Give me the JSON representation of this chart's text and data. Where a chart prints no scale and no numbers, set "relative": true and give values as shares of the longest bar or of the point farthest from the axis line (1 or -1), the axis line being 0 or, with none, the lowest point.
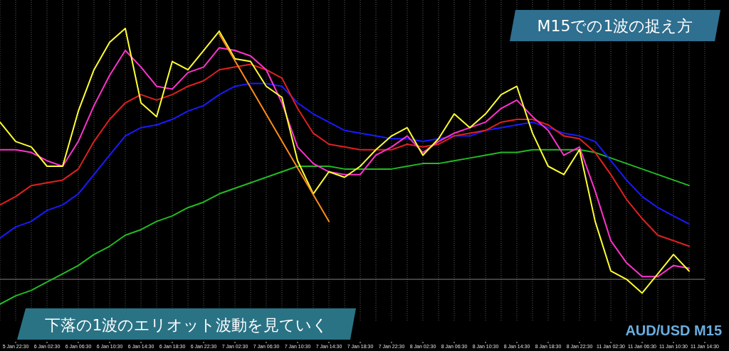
{
  "chart_data": {
    "type": "line",
    "title": "M15での1波の捉え方",
    "annotations": [
      "下落の1波のエリオット波動を見ていく",
      "AUD/USD M15"
    ],
    "relative": true,
    "grid": "x",
    "legend": false,
    "marker": "none",
    "line_style": "solid",
    "categories": [
      null,
      "5 Jan 22:30",
      null,
      "6 Jan 02:30",
      null,
      "6 Jan 06:30",
      null,
      "6 Jan 10:30",
      null,
      "6 Jan 14:30",
      null,
      "6 Jan 18:30",
      null,
      "6 Jan 22:30",
      null,
      "7 Jan 02:30",
      null,
      "7 Jan 06:30",
      null,
      "7 Jan 10:30",
      null,
      "7 Jan 14:30",
      null,
      "7 Jan 18:30",
      null,
      "7 Jan 22:30",
      null,
      "8 Jan 02:30",
      null,
      "8 Jan 06:30",
      null,
      "8 Jan 10:30",
      null,
      "8 Jan 14:30",
      null,
      "8 Jan 18:30",
      null,
      "8 Jan 22:30",
      null,
      "11 Jan 02:30",
      null,
      "11 Jan 06:30",
      null,
      "11 Jan 10:30",
      null,
      "11 Jan 14:30"
    ],
    "series": [
      {
        "color": "#22bb22",
        "values": [
          0,
          0.03,
          0.05,
          0.08,
          0.11,
          0.14,
          0.18,
          0.21,
          0.25,
          0.27,
          0.3,
          0.32,
          0.35,
          0.37,
          0.4,
          0.42,
          0.44,
          0.46,
          0.48,
          0.5,
          0.5,
          0.5,
          0.49,
          0.49,
          0.49,
          0.49,
          0.5,
          0.51,
          0.51,
          0.52,
          0.53,
          0.54,
          0.55,
          0.55,
          0.56,
          0.56,
          0.56,
          0.56,
          0.55,
          0.53,
          0.51,
          0.49,
          0.47,
          0.45,
          0.43,
          null
        ]
      },
      {
        "color": "#1a1aff",
        "values": [
          0.24,
          0.28,
          0.3,
          0.34,
          0.36,
          0.4,
          0.47,
          0.54,
          0.61,
          0.64,
          0.65,
          0.67,
          0.7,
          0.72,
          0.76,
          0.79,
          0.8,
          0.8,
          0.79,
          0.73,
          0.69,
          0.66,
          0.63,
          0.62,
          0.61,
          0.6,
          0.6,
          0.59,
          0.6,
          0.61,
          0.61,
          0.63,
          0.64,
          0.65,
          0.66,
          0.64,
          0.62,
          0.61,
          0.59,
          0.52,
          0.45,
          0.39,
          0.35,
          0.32,
          0.29,
          null
        ]
      },
      {
        "color": "#e02020",
        "values": [
          0.36,
          0.39,
          0.43,
          0.44,
          0.45,
          0.49,
          0.59,
          0.67,
          0.73,
          0.76,
          0.74,
          0.76,
          0.79,
          0.81,
          0.85,
          0.86,
          0.87,
          0.85,
          0.82,
          0.71,
          0.62,
          0.58,
          0.57,
          0.56,
          0.56,
          0.56,
          0.58,
          0.57,
          0.58,
          0.61,
          0.62,
          0.63,
          0.66,
          0.67,
          0.67,
          0.65,
          0.61,
          0.6,
          0.55,
          0.47,
          0.38,
          0.31,
          0.25,
          0.23,
          0.21,
          null
        ]
      },
      {
        "color": "#ff33cc",
        "values": [
          0.56,
          0.56,
          0.55,
          0.52,
          0.5,
          0.59,
          0.72,
          0.83,
          0.92,
          0.86,
          0.79,
          0.78,
          0.84,
          0.86,
          0.93,
          0.92,
          0.9,
          0.85,
          0.73,
          0.57,
          0.51,
          0.48,
          0.47,
          0.47,
          0.54,
          0.57,
          0.61,
          0.55,
          0.59,
          0.62,
          0.64,
          0.66,
          0.71,
          0.74,
          0.68,
          0.63,
          0.54,
          0.57,
          0.41,
          0.23,
          0.15,
          0.1,
          0.1,
          0.14,
          0.13,
          null
        ]
      },
      {
        "color": "#ffff33",
        "values": [
          0.66,
          0.59,
          0.57,
          0.5,
          0.5,
          0.7,
          0.85,
          0.95,
          1,
          0.73,
          0.68,
          0.88,
          0.85,
          0.92,
          0.99,
          0.89,
          0.88,
          0.79,
          0.75,
          0.52,
          0.4,
          0.48,
          0.46,
          0.5,
          0.56,
          0.61,
          0.64,
          0.54,
          0.6,
          0.69,
          0.64,
          0.69,
          0.76,
          0.79,
          0.62,
          0.5,
          0.47,
          0.56,
          0.3,
          0.12,
          0.09,
          0.04,
          0.11,
          0.18,
          0.12,
          null
        ]
      },
      {
        "color": "#ff8c1a",
        "values": [
          null,
          null,
          null,
          null,
          null,
          null,
          null,
          null,
          null,
          null,
          null,
          null,
          null,
          null,
          0.98,
          null,
          null,
          null,
          null,
          null,
          null,
          0.3,
          null,
          null,
          null,
          null,
          null,
          null,
          null,
          null,
          null,
          null,
          null,
          null,
          null,
          null,
          null,
          null,
          null,
          null,
          null,
          null,
          null,
          null,
          null,
          null
        ]
      }
    ],
    "ref_lines": [
      {
        "axis": "y",
        "value": 0.09,
        "color": "#808080"
      }
    ]
  }
}
